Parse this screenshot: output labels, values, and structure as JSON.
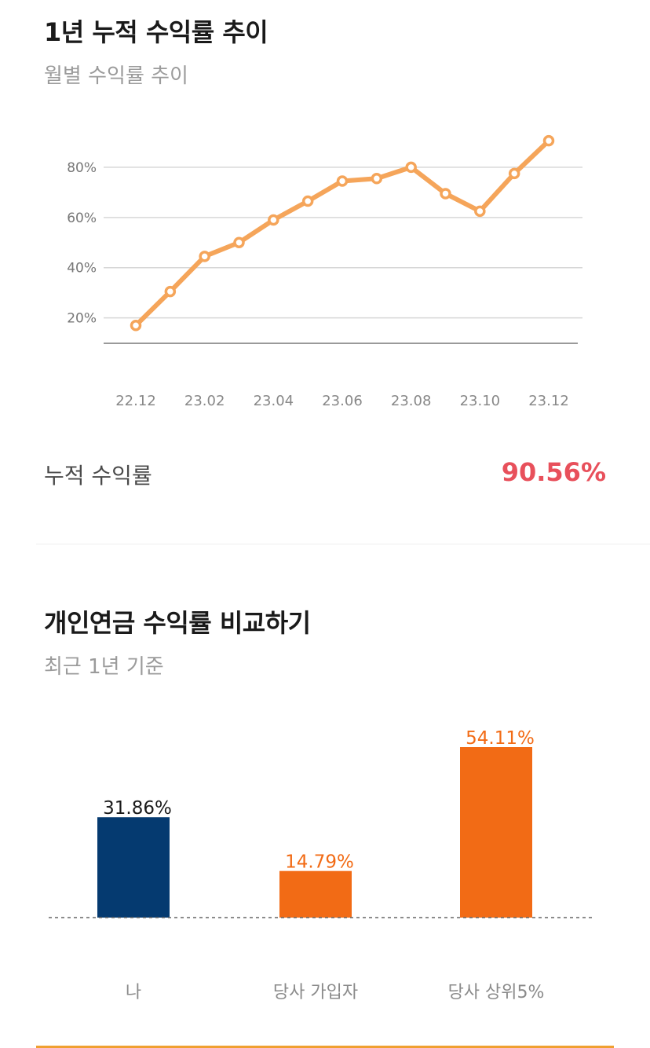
{
  "trend": {
    "title": "1년 누적 수익률 추이",
    "subtitle": "월별 수익률 추이",
    "cumulative_label": "누적 수익률",
    "cumulative_value": "90.56%"
  },
  "compare": {
    "title": "개인연금 수익률 비교하기",
    "subtitle": "최근 1년 기준"
  },
  "colors": {
    "line": "#f5a55a",
    "me_bar": "#053a70",
    "other_bar": "#f26b15",
    "highlight": "#e8505b"
  },
  "chart_data": [
    {
      "type": "line",
      "title": "",
      "x": [
        "22.12",
        "23.01",
        "23.02",
        "23.03",
        "23.04",
        "23.05",
        "23.06",
        "23.07",
        "23.08",
        "23.09",
        "23.10",
        "23.11",
        "23.12"
      ],
      "x_tick_labels": [
        "22.12",
        "23.02",
        "23.04",
        "23.06",
        "23.08",
        "23.10",
        "23.12"
      ],
      "y_tick_labels": [
        "20%",
        "40%",
        "60%",
        "80%"
      ],
      "y_ticks": [
        20,
        40,
        60,
        80
      ],
      "ylim": [
        13,
        100
      ],
      "series": [
        {
          "values": [
            17,
            30.5,
            44.5,
            50,
            59,
            66.5,
            74.5,
            75.5,
            80,
            69.5,
            62.5,
            77.5,
            90.56
          ]
        }
      ],
      "grid": true
    },
    {
      "type": "bar",
      "categories": [
        "나",
        "당사 가입자",
        "당사 상위5%"
      ],
      "values": [
        31.86,
        14.79,
        54.11
      ],
      "value_labels": [
        "31.86%",
        "14.79%",
        "54.11%"
      ],
      "ylim": [
        0,
        54.11
      ]
    }
  ]
}
